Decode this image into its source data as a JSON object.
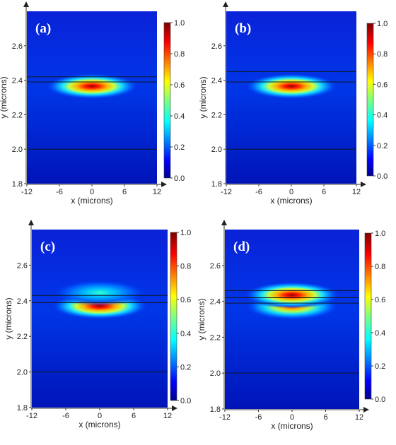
{
  "chart_data": [
    {
      "type": "heatmap",
      "panel_label": "(a)",
      "xlabel": "x (microns)",
      "ylabel": "y (microns)",
      "xlim": [
        -12,
        12
      ],
      "ylim": [
        1.8,
        2.8
      ],
      "x_ticks": [
        "-12",
        "-6",
        "0",
        "6",
        "12"
      ],
      "y_ticks": [
        "1.8",
        "2.0",
        "2.2",
        "2.4",
        "2.6"
      ],
      "colorbar": {
        "min": 0.0,
        "max": 1.0,
        "ticks": [
          "0.0",
          "0.2",
          "0.4",
          "0.6",
          "0.8",
          "1.0"
        ]
      },
      "interfaces_y": [
        2.0,
        2.39,
        2.42
      ],
      "lobes": [
        {
          "y_center": 2.365,
          "peak": 1.0
        }
      ]
    },
    {
      "type": "heatmap",
      "panel_label": "(b)",
      "xlabel": "x (microns)",
      "ylabel": "y (microns)",
      "xlim": [
        -12,
        12
      ],
      "ylim": [
        1.8,
        2.8
      ],
      "x_ticks": [
        "-12",
        "-6",
        "0",
        "6",
        "12"
      ],
      "y_ticks": [
        "1.8",
        "2.0",
        "2.2",
        "2.4",
        "2.6"
      ],
      "colorbar": {
        "min": 0.0,
        "max": 1.0,
        "ticks": [
          "0.0",
          "0.2",
          "0.4",
          "0.6",
          "0.8",
          "1.0"
        ]
      },
      "interfaces_y": [
        2.0,
        2.39,
        2.45
      ],
      "lobes": [
        {
          "y_center": 2.365,
          "peak": 1.0
        }
      ]
    },
    {
      "type": "heatmap",
      "panel_label": "(c)",
      "xlabel": "x (microns)",
      "ylabel": "y (microns)",
      "xlim": [
        -12,
        12
      ],
      "ylim": [
        1.8,
        2.8
      ],
      "x_ticks": [
        "-12",
        "-6",
        "0",
        "6",
        "12"
      ],
      "y_ticks": [
        "1.8",
        "2.0",
        "2.2",
        "2.4",
        "2.6"
      ],
      "colorbar": {
        "min": 0.0,
        "max": 1.0,
        "ticks": [
          "0.0",
          "0.2",
          "0.4",
          "0.6",
          "0.8",
          "1.0"
        ]
      },
      "interfaces_y": [
        2.0,
        2.39,
        2.43
      ],
      "lobes": [
        {
          "y_center": 2.37,
          "peak": 1.0
        },
        {
          "y_center": 2.445,
          "peak": 0.45
        }
      ]
    },
    {
      "type": "heatmap",
      "panel_label": "(d)",
      "xlabel": "x (microns)",
      "ylabel": "y (microns)",
      "xlim": [
        -12,
        12
      ],
      "ylim": [
        1.8,
        2.8
      ],
      "x_ticks": [
        "-12",
        "-6",
        "0",
        "6",
        "12"
      ],
      "y_ticks": [
        "1.8",
        "2.0",
        "2.2",
        "2.4",
        "2.6"
      ],
      "colorbar": {
        "min": 0.0,
        "max": 1.0,
        "ticks": [
          "0.0",
          "0.2",
          "0.4",
          "0.6",
          "0.8",
          "1.0"
        ]
      },
      "interfaces_y": [
        2.0,
        2.39,
        2.42,
        2.46
      ],
      "lobes": [
        {
          "y_center": 2.37,
          "peak": 0.85
        },
        {
          "y_center": 2.435,
          "peak": 0.95
        }
      ]
    }
  ]
}
